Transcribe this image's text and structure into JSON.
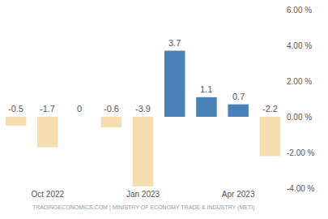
{
  "chart_data": {
    "type": "bar",
    "categories": [
      null,
      "Oct 2022",
      null,
      null,
      "Jan 2023",
      null,
      null,
      "Apr 2023",
      null
    ],
    "values": [
      -0.5,
      -1.7,
      0,
      -0.6,
      -3.9,
      3.7,
      1.1,
      0.7,
      -2.2
    ],
    "colors": [
      "#f5ddb0",
      "#f5ddb0",
      "#f5ddb0",
      "#f5ddb0",
      "#f5ddb0",
      "#4a80b8",
      "#4a80b8",
      "#4a80b8",
      "#f5ddb0"
    ],
    "ylim": [
      -4,
      6
    ],
    "yticks": [
      {
        "value": -4,
        "label": "-4.00 %"
      },
      {
        "value": -2,
        "label": "-2.00 %"
      },
      {
        "value": 0,
        "label": "0.00 %"
      },
      {
        "value": 2,
        "label": "2.00 %"
      },
      {
        "value": 4,
        "label": "4.00 %"
      },
      {
        "value": 6,
        "label": "6.00 %"
      }
    ],
    "grid": false,
    "data_labels": true,
    "annotations": [
      "TRADINGECONOMICS.COM | MINISTRY OF ECONOMY TRADE & INDUSTRY (METI)"
    ]
  }
}
